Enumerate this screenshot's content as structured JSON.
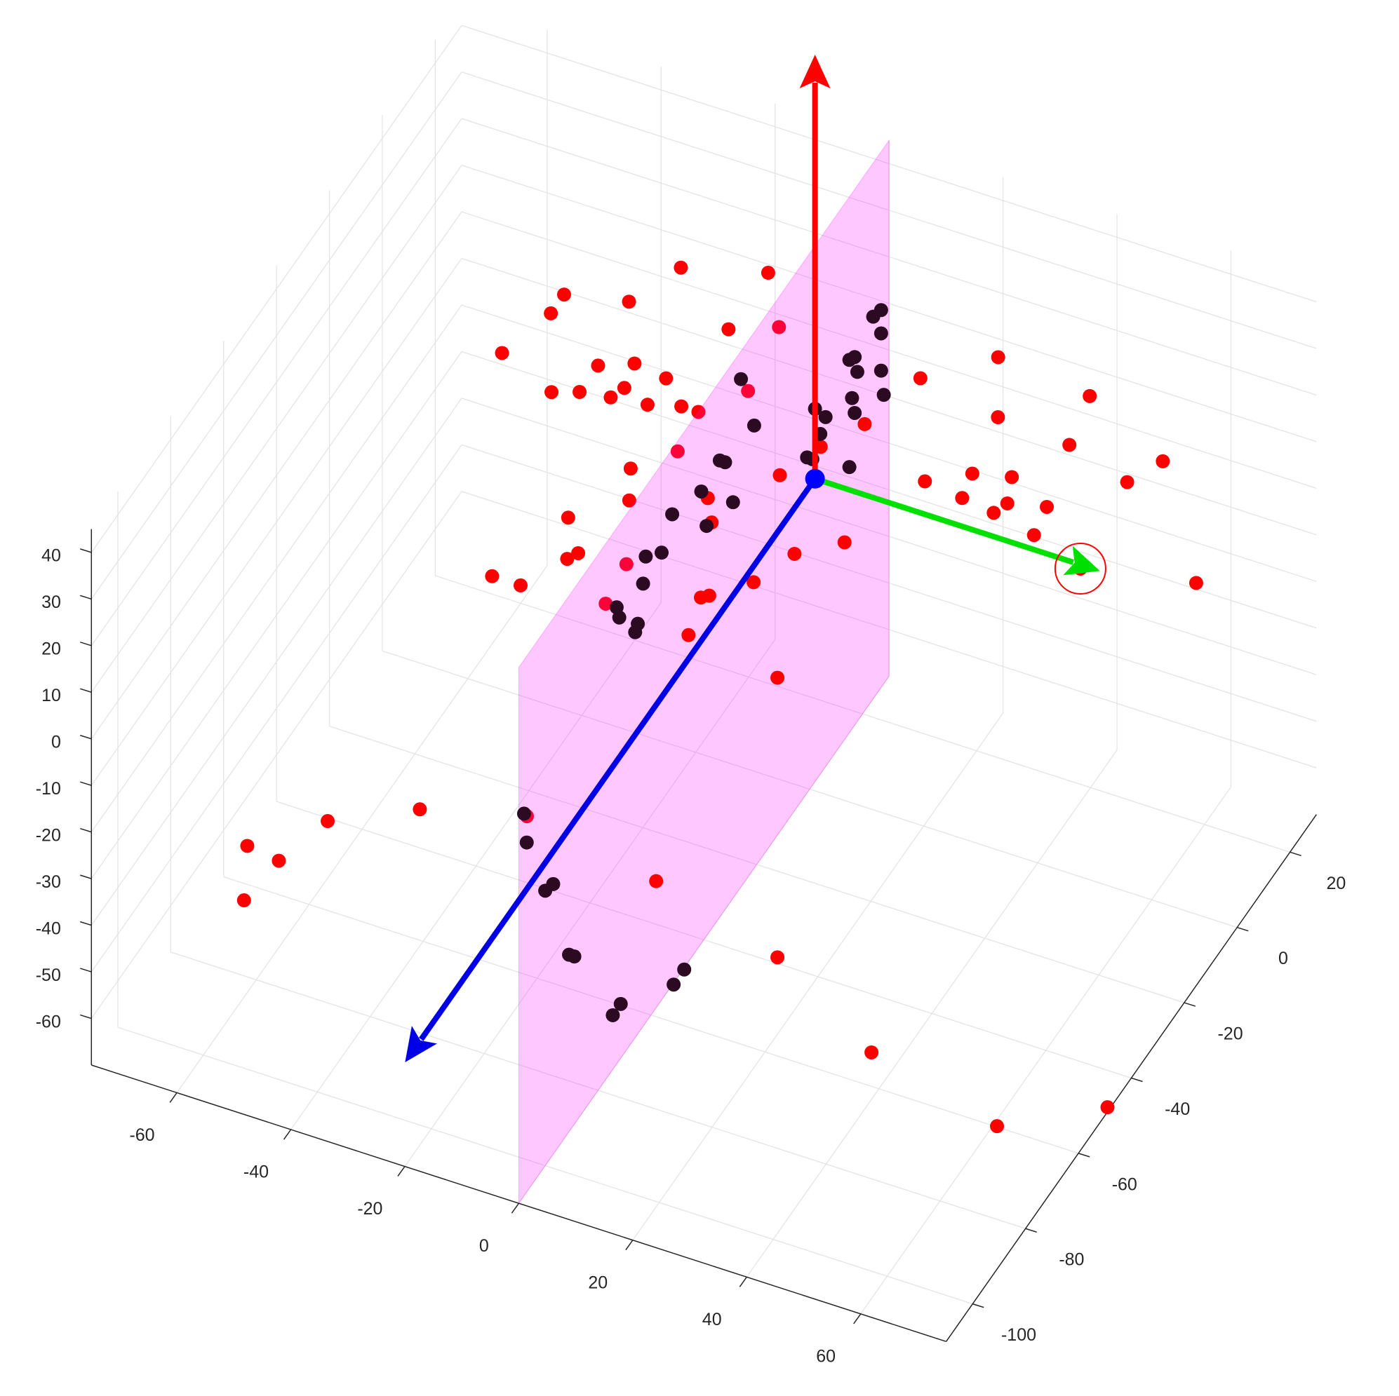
{
  "chart_data": {
    "type": "scatter3d",
    "xlim": [
      -75,
      75
    ],
    "ylim": [
      -110,
      30
    ],
    "zlim": [
      -70,
      45
    ],
    "xticks": [
      -60,
      -40,
      -20,
      0,
      20,
      40,
      60
    ],
    "yticks": [
      -100,
      -80,
      -60,
      -40,
      -20,
      0,
      20
    ],
    "zticks": [
      -60,
      -50,
      -40,
      -30,
      -20,
      -10,
      0,
      10,
      20,
      30,
      40
    ],
    "grid": true,
    "series": [
      {
        "color": "#ff0000",
        "x": [
          -24,
          -11,
          -38,
          -38,
          -28,
          -11,
          -4,
          -41,
          -26,
          -21,
          -15,
          -20,
          -30,
          -26,
          -21,
          -15,
          -10,
          -7,
          -2,
          -11,
          -6,
          -8,
          -15,
          -10,
          -11,
          -20,
          -15,
          -1,
          -2,
          12,
          13,
          14,
          18,
          21,
          27,
          11,
          31,
          18,
          14,
          3,
          6,
          12,
          21,
          38,
          27,
          40,
          55,
          23,
          29,
          35,
          30,
          37,
          36,
          43,
          52,
          44,
          54,
          72,
          -56,
          -50,
          -47,
          -35,
          -51,
          -19,
          6,
          31,
          54,
          70,
          75
        ],
        "y": [
          3,
          8,
          -11,
          -16,
          -8,
          -7,
          -3,
          -28,
          -24,
          -21,
          -22,
          -27,
          -33,
          -31,
          -30,
          -29,
          -27,
          -27,
          -19,
          -44,
          -37,
          -51,
          -59,
          -66,
          -68,
          -77,
          -77,
          -75,
          -65,
          -67,
          -66,
          -76,
          -60,
          -51,
          -45,
          -35,
          -79,
          -18,
          -26,
          -45,
          -50,
          16,
          26,
          24,
          13,
          12,
          15,
          -6,
          -1,
          1,
          -7,
          -5,
          -8,
          -3,
          8,
          -10,
          -14,
          -9,
          -92,
          -93,
          -81,
          -72,
          -104,
          -66,
          -71,
          -79,
          -93,
          -80,
          -49
        ],
        "z": [
          30,
          30,
          30,
          30,
          30,
          30,
          30,
          30,
          30,
          30,
          30,
          30,
          30,
          30,
          30,
          30,
          30,
          30,
          30,
          30,
          30,
          30,
          30,
          30,
          30,
          30,
          30,
          30,
          30,
          30,
          30,
          30,
          30,
          30,
          30,
          30,
          30,
          30,
          30,
          30,
          30,
          10,
          10,
          10,
          10,
          10,
          10,
          10,
          10,
          10,
          10,
          10,
          10,
          10,
          10,
          10,
          10,
          10,
          -30,
          -30,
          -30,
          -30,
          -30,
          -30,
          -30,
          -30,
          -30,
          -50,
          -69
        ]
      },
      {
        "color": "#2b0a22",
        "x": [
          0,
          0,
          0,
          0,
          0,
          0,
          0,
          0,
          0,
          0,
          0,
          0,
          0,
          0,
          0,
          0,
          0,
          0,
          0,
          0,
          0,
          0,
          0,
          0,
          0,
          0,
          0,
          0,
          0,
          0,
          0,
          0,
          0,
          0,
          0,
          0,
          0,
          10,
          10,
          10,
          10
        ],
        "y": [
          27,
          24,
          27,
          17,
          15,
          18,
          27,
          28,
          16,
          17,
          2,
          6,
          4,
          -1,
          1,
          15,
          -26,
          -21,
          -34,
          -32,
          -41,
          -29,
          -52,
          -39,
          -56,
          -62,
          -63,
          -73,
          -72,
          -65,
          -66,
          -108,
          -107,
          -97,
          -100,
          -91,
          -89,
          -69,
          -73,
          -93,
          -96
        ],
        "z": [
          11,
          12,
          6,
          9,
          10,
          5,
          -2,
          -8,
          1,
          -3,
          10,
          5,
          3,
          2,
          0,
          -13,
          39,
          25,
          28,
          26,
          27,
          15,
          31,
          18,
          26,
          30,
          25,
          28,
          25,
          18,
          17,
          12,
          5,
          -12,
          -11,
          -32,
          -34,
          -49,
          -49,
          -37,
          -37
        ]
      }
    ],
    "plane": {
      "x": 0,
      "color": "#ff00ff",
      "alpha": 0.22
    },
    "vectors": [
      {
        "color": "#ff0000",
        "from": [
          0,
          2,
          -5
        ],
        "to": [
          0,
          2,
          86
        ]
      },
      {
        "color": "#00e000",
        "from": [
          0,
          2,
          -5
        ],
        "to": [
          50,
          2,
          -5
        ]
      },
      {
        "color": "#0000e6",
        "from": [
          0,
          2,
          -5
        ],
        "to": [
          0,
          -153,
          -5
        ]
      }
    ],
    "origin_color": "#0000ff",
    "highlight": {
      "series": 0,
      "index": 56,
      "color": "#ff0000"
    }
  }
}
